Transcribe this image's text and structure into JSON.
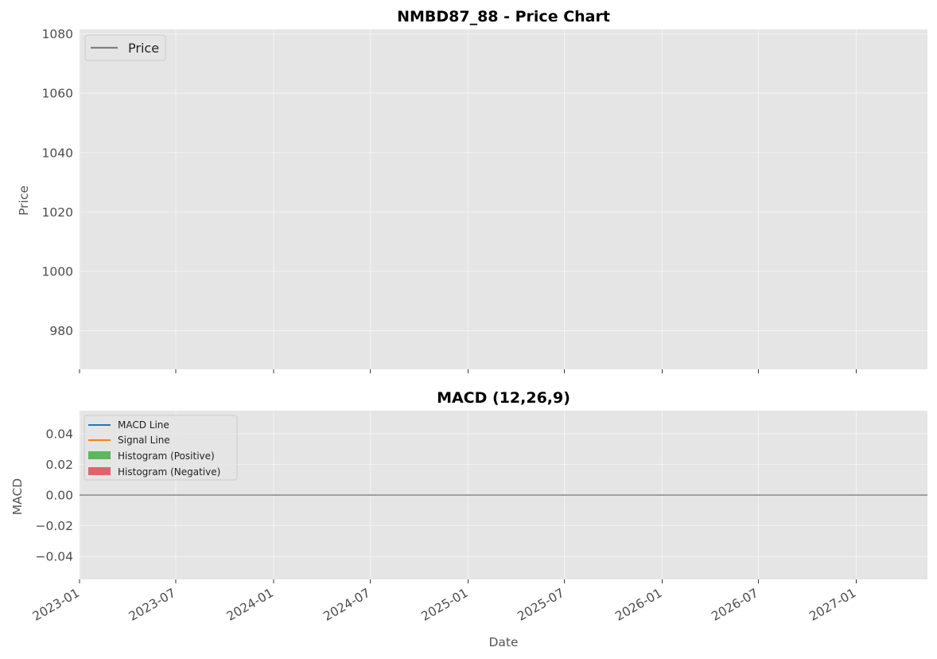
{
  "chart_data": [
    {
      "type": "line",
      "title": "NMBD87_88 - Price Chart",
      "xlabel": "",
      "ylabel": "Price",
      "x_ticks": [
        "2023-01",
        "2023-07",
        "2024-01",
        "2024-07",
        "2025-01",
        "2025-07",
        "2026-01",
        "2026-07",
        "2027-01"
      ],
      "y_ticks": [
        "980",
        "1000",
        "1020",
        "1040",
        "1060",
        "1080"
      ],
      "y_tick_values": [
        980,
        1000,
        1020,
        1040,
        1060,
        1080
      ],
      "ylim": [
        967,
        1081.5
      ],
      "xlim": [
        "2023-01-01",
        "2027-05-15"
      ],
      "grid": true,
      "legend_position": "upper-left",
      "series": [
        {
          "name": "Price",
          "color": "#808080",
          "x": [],
          "values": []
        }
      ]
    },
    {
      "type": "line",
      "title": "MACD (12,26,9)",
      "xlabel": "Date",
      "ylabel": "MACD",
      "x_ticks": [
        "2023-01",
        "2023-07",
        "2024-01",
        "2024-07",
        "2025-01",
        "2025-07",
        "2026-01",
        "2026-07",
        "2027-01"
      ],
      "y_ticks": [
        "0.04",
        "0.02",
        "0.00",
        "−0.02",
        "−0.04"
      ],
      "y_tick_values": [
        0.04,
        0.02,
        0.0,
        -0.02,
        -0.04
      ],
      "ylim": [
        -0.055,
        0.055
      ],
      "xlim": [
        "2023-01-01",
        "2027-05-15"
      ],
      "grid": true,
      "legend_position": "upper-left",
      "zero_line_color": "#a0a0a0",
      "series": [
        {
          "name": "MACD Line",
          "color": "#1f77b4",
          "x": [],
          "values": []
        },
        {
          "name": "Signal Line",
          "color": "#ff7f0e",
          "x": [],
          "values": []
        },
        {
          "name": "Histogram (Positive)",
          "color": "#5cb85c",
          "x": [],
          "values": []
        },
        {
          "name": "Histogram (Negative)",
          "color": "#e0636a",
          "x": [],
          "values": []
        }
      ]
    }
  ],
  "colors": {
    "plot_background": "#e5e5e5",
    "grid": "#f2f2f2",
    "tick_text": "#4d4d4d"
  }
}
